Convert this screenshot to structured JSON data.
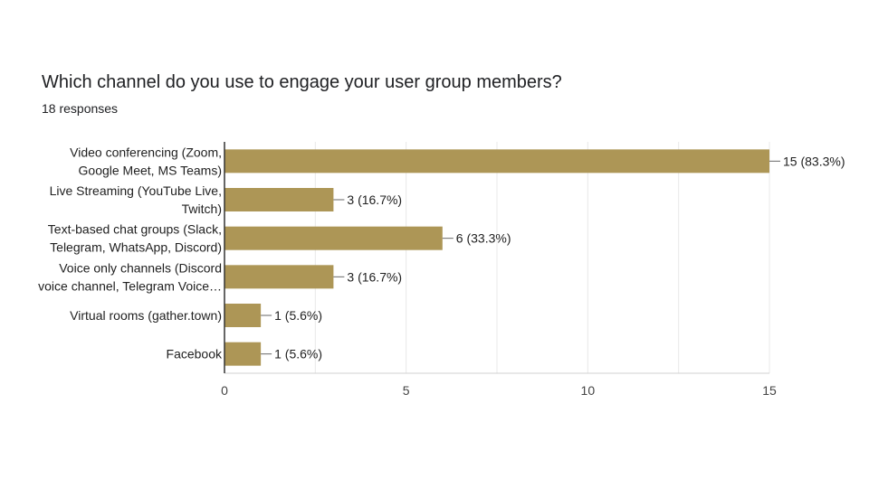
{
  "question": {
    "title": "Which channel do you use to engage your user group members?",
    "responses": "18 responses"
  },
  "chart_data": {
    "type": "bar",
    "orientation": "horizontal",
    "title": "Which channel do you use to engage your user group members?",
    "subtitle": "18 responses",
    "categories": [
      [
        "Video conferencing (Zoom,",
        "Google Meet, MS Teams)"
      ],
      [
        "Live Streaming (YouTube Live,",
        "Twitch)"
      ],
      [
        "Text-based chat groups (Slack,",
        "Telegram, WhatsApp, Discord)"
      ],
      [
        "Voice only channels (Discord",
        "voice channel, Telegram Voice…"
      ],
      [
        "Virtual rooms (gather.town)"
      ],
      [
        "Facebook"
      ]
    ],
    "values": [
      15,
      3,
      6,
      3,
      1,
      1
    ],
    "data_labels": [
      "15 (83.3%)",
      "3 (16.7%)",
      "6 (33.3%)",
      "3 (16.7%)",
      "1 (5.6%)",
      "1 (5.6%)"
    ],
    "xlim": [
      0,
      15
    ],
    "xticks": [
      0,
      5,
      10,
      15
    ],
    "grid": true,
    "colors": {
      "bar": "#ad9656",
      "grid": "#e8e8e8",
      "axis": "#333333",
      "text": "#212121"
    }
  }
}
